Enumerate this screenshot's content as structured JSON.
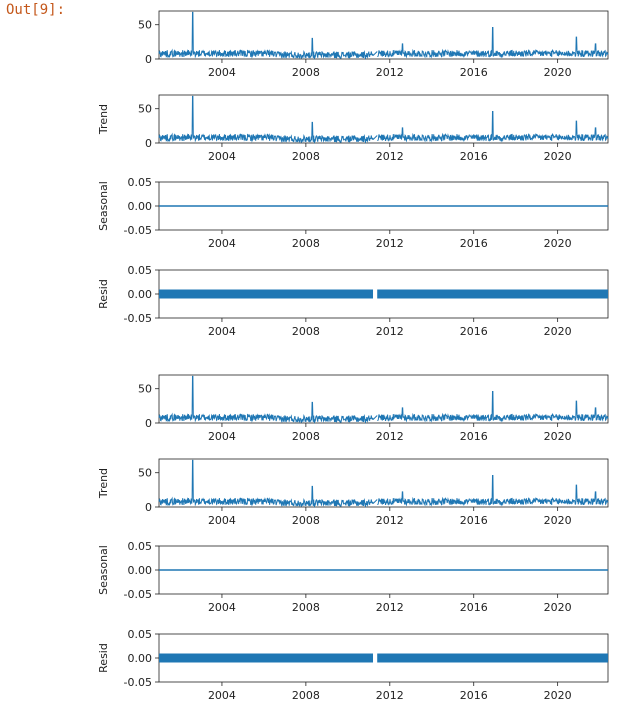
{
  "cell": {
    "prompt": "Out[9]:"
  },
  "colors": {
    "line": "#1f77b4",
    "axis": "#222222"
  },
  "chart_data": [
    {
      "type": "line",
      "ylabel": "",
      "x_tick_labels": [
        "2004",
        "2008",
        "2012",
        "2016",
        "2020"
      ],
      "y_tick_labels": [
        "0",
        "50"
      ],
      "ylim": [
        0,
        70
      ],
      "xlim": [
        2001.0,
        2022.4
      ],
      "kind": "series"
    },
    {
      "type": "line",
      "ylabel": "Trend",
      "x_tick_labels": [
        "2004",
        "2008",
        "2012",
        "2016",
        "2020"
      ],
      "y_tick_labels": [
        "0",
        "50"
      ],
      "ylim": [
        0,
        70
      ],
      "xlim": [
        2001.0,
        2022.4
      ],
      "kind": "series"
    },
    {
      "type": "line",
      "ylabel": "Seasonal",
      "x_tick_labels": [
        "2004",
        "2008",
        "2012",
        "2016",
        "2020"
      ],
      "y_tick_labels": [
        "-0.05",
        "0.00",
        "0.05"
      ],
      "ylim": [
        -0.05,
        0.05
      ],
      "xlim": [
        2001.0,
        2022.4
      ],
      "kind": "flat"
    },
    {
      "type": "line",
      "ylabel": "Resid",
      "x_tick_labels": [
        "2004",
        "2008",
        "2012",
        "2016",
        "2020"
      ],
      "y_tick_labels": [
        "-0.05",
        "0.00",
        "0.05"
      ],
      "ylim": [
        -0.05,
        0.05
      ],
      "xlim": [
        2001.0,
        2022.4
      ],
      "kind": "thick"
    },
    {
      "type": "line",
      "ylabel": "",
      "x_tick_labels": [
        "2004",
        "2008",
        "2012",
        "2016",
        "2020"
      ],
      "y_tick_labels": [
        "0",
        "50"
      ],
      "ylim": [
        0,
        70
      ],
      "xlim": [
        2001.0,
        2022.4
      ],
      "kind": "series"
    },
    {
      "type": "line",
      "ylabel": "Trend",
      "x_tick_labels": [
        "2004",
        "2008",
        "2012",
        "2016",
        "2020"
      ],
      "y_tick_labels": [
        "0",
        "50"
      ],
      "ylim": [
        0,
        70
      ],
      "xlim": [
        2001.0,
        2022.4
      ],
      "kind": "series"
    },
    {
      "type": "line",
      "ylabel": "Seasonal",
      "x_tick_labels": [
        "2004",
        "2008",
        "2012",
        "2016",
        "2020"
      ],
      "y_tick_labels": [
        "-0.05",
        "0.00",
        "0.05"
      ],
      "ylim": [
        -0.05,
        0.05
      ],
      "xlim": [
        2001.0,
        2022.4
      ],
      "kind": "flat"
    },
    {
      "type": "line",
      "ylabel": "Resid",
      "x_tick_labels": [
        "2004",
        "2008",
        "2012",
        "2016",
        "2020"
      ],
      "y_tick_labels": [
        "-0.05",
        "0.00",
        "0.05"
      ],
      "ylim": [
        -0.05,
        0.05
      ],
      "xlim": [
        2001.0,
        2022.4
      ],
      "kind": "thick"
    }
  ],
  "series_shape": {
    "base": 8,
    "noise": 5,
    "gap": [
      2011.2,
      2011.4
    ],
    "spikes": [
      {
        "x": 2002.6,
        "y": 68
      },
      {
        "x": 2008.3,
        "y": 30
      },
      {
        "x": 2016.9,
        "y": 46
      },
      {
        "x": 2020.9,
        "y": 32
      },
      {
        "x": 2012.6,
        "y": 22
      },
      {
        "x": 2021.8,
        "y": 22
      }
    ]
  }
}
